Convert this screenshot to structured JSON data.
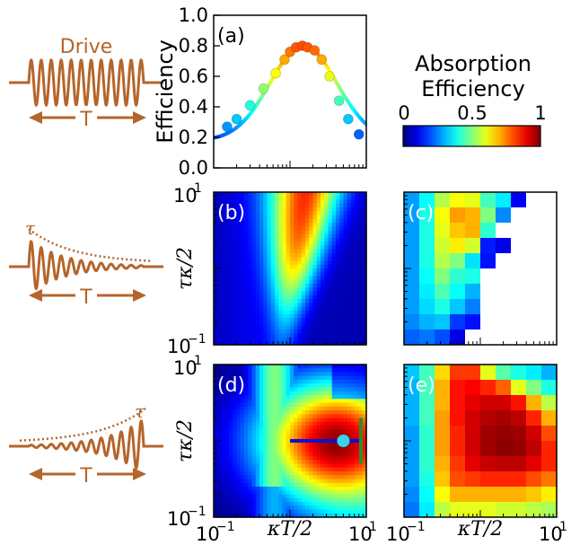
{
  "colors": {
    "drive": "#b5652b",
    "ink": "#000000",
    "cb_low": "#00007f",
    "cb_high": "#7f0000",
    "marker_cyan": "#33d6ee",
    "line_blue": "#1010c8",
    "line_green": "#2e8b2e"
  },
  "left_panels": {
    "top_label": "Drive",
    "duration_label": "T",
    "tau_label": "τ"
  },
  "colorbar": {
    "title_line1": "Absorption",
    "title_line2": "Efficiency",
    "ticks": [
      "0",
      "0.5",
      "1"
    ],
    "colormap": "jet",
    "range": [
      0,
      1
    ]
  },
  "chart_data": [
    {
      "panel": "(a)",
      "type": "line",
      "ylabel": "Efficiency",
      "xlabel": "",
      "x_scale": "log",
      "xlim": [
        0.1,
        10
      ],
      "ylim": [
        0.0,
        1.0
      ],
      "yticks": [
        "0.0",
        "0.2",
        "0.4",
        "0.6",
        "0.8",
        "1.0"
      ],
      "curve_peak": 0.8,
      "curve_peak_x": 1.5,
      "line_colored_by_value": true,
      "markers": {
        "x": [
          0.15,
          0.2,
          0.3,
          0.45,
          0.65,
          0.85,
          1.0,
          1.2,
          1.45,
          1.7,
          2.1,
          2.6,
          3.3,
          4.4,
          5.8,
          8.0
        ],
        "y": [
          0.27,
          0.32,
          0.41,
          0.52,
          0.62,
          0.71,
          0.76,
          0.79,
          0.8,
          0.79,
          0.77,
          0.71,
          0.6,
          0.44,
          0.32,
          0.22
        ]
      }
    },
    {
      "panel": "(b)",
      "type": "heatmap",
      "ylabel": "τκ/2",
      "x_scale": "log",
      "y_scale": "log",
      "xlim": [
        0.1,
        10
      ],
      "ylim": [
        0.1,
        10
      ],
      "ytick_labels": [
        "10^1",
        "10^-1"
      ],
      "description_values": {
        "peak": 0.85,
        "peak_x": 1.6,
        "peak_y": 10
      }
    },
    {
      "panel": "(c)",
      "type": "heatmap",
      "x_scale": "log",
      "y_scale": "log",
      "xlim": [
        0.1,
        10
      ],
      "ylim": [
        0.1,
        10
      ],
      "grid": [
        [
          0.28,
          0.38,
          0.55,
          0.62,
          0.6,
          0.44,
          0.36,
          0.12,
          null,
          null
        ],
        [
          0.28,
          0.4,
          0.62,
          0.72,
          0.7,
          0.5,
          0.26,
          null,
          null,
          null
        ],
        [
          0.28,
          0.4,
          0.6,
          0.68,
          0.7,
          0.42,
          null,
          null,
          null,
          null
        ],
        [
          0.28,
          0.4,
          0.58,
          0.64,
          0.58,
          0.15,
          0.1,
          null,
          null,
          null
        ],
        [
          0.28,
          0.4,
          0.55,
          0.5,
          0.35,
          0.14,
          null,
          null,
          null,
          null
        ],
        [
          0.28,
          0.38,
          0.5,
          0.42,
          0.4,
          null,
          null,
          null,
          null,
          null
        ],
        [
          0.28,
          0.36,
          0.45,
          0.38,
          0.3,
          null,
          null,
          null,
          null,
          null
        ],
        [
          0.28,
          0.34,
          0.4,
          0.32,
          0.25,
          null,
          null,
          null,
          null,
          null
        ],
        [
          0.26,
          0.3,
          0.32,
          0.18,
          0.14,
          null,
          null,
          null,
          null,
          null
        ],
        [
          0.22,
          0.24,
          0.2,
          0.1,
          null,
          null,
          null,
          null,
          null,
          null
        ]
      ]
    },
    {
      "panel": "(d)",
      "type": "heatmap",
      "ylabel": "τκ/2",
      "xlabel": "κT/2",
      "x_scale": "log",
      "y_scale": "log",
      "xlim": [
        0.1,
        10
      ],
      "ylim": [
        0.1,
        10
      ],
      "xtick_labels": [
        "10^-1",
        "10^1"
      ],
      "ytick_labels": [
        "10^1",
        "10^-1"
      ],
      "description_values": {
        "peak": 0.98,
        "peak_x": 4.0,
        "peak_y": 1.0
      },
      "marker": {
        "x": 5.0,
        "y": 1.0
      },
      "hline": {
        "x": [
          1.0,
          8.5
        ],
        "y": 1.0
      },
      "vline": {
        "x": 8.5,
        "y": [
          0.5,
          2.0
        ]
      }
    },
    {
      "panel": "(e)",
      "type": "heatmap",
      "xlabel": "κT/2",
      "x_scale": "log",
      "y_scale": "log",
      "xlim": [
        0.1,
        10
      ],
      "ylim": [
        0.1,
        10
      ],
      "xtick_labels": [
        "10^-1",
        "10^1"
      ],
      "grid": [
        [
          0.32,
          0.44,
          0.66,
          0.82,
          0.82,
          0.6,
          0.46,
          0.4,
          0.36,
          0.3
        ],
        [
          0.3,
          0.44,
          0.7,
          0.86,
          0.88,
          0.84,
          0.78,
          0.6,
          0.5,
          0.4
        ],
        [
          0.3,
          0.44,
          0.7,
          0.86,
          0.9,
          0.92,
          0.92,
          0.86,
          0.7,
          0.56
        ],
        [
          0.3,
          0.44,
          0.72,
          0.86,
          0.92,
          0.95,
          0.96,
          0.94,
          0.84,
          0.7
        ],
        [
          0.28,
          0.42,
          0.72,
          0.84,
          0.92,
          0.97,
          0.98,
          0.97,
          0.92,
          0.8
        ],
        [
          0.28,
          0.42,
          0.72,
          0.84,
          0.92,
          0.97,
          0.99,
          0.98,
          0.94,
          0.84
        ],
        [
          0.28,
          0.42,
          0.7,
          0.82,
          0.9,
          0.93,
          0.94,
          0.94,
          0.9,
          0.84
        ],
        [
          0.28,
          0.4,
          0.68,
          0.8,
          0.82,
          0.84,
          0.84,
          0.84,
          0.8,
          0.76
        ],
        [
          0.26,
          0.38,
          0.62,
          0.7,
          0.7,
          0.7,
          0.7,
          0.7,
          0.68,
          0.64
        ],
        [
          0.24,
          0.36,
          0.56,
          0.6,
          0.6,
          0.6,
          0.58,
          0.58,
          0.56,
          0.54
        ]
      ]
    }
  ]
}
